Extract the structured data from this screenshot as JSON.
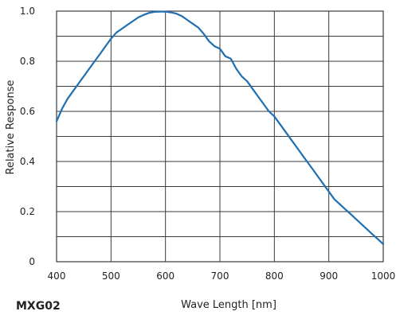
{
  "chart_data": {
    "type": "line",
    "title": "",
    "model_label": "MXG02",
    "xlabel": "Wave Length [nm]",
    "ylabel": "Relative Response",
    "xlim": [
      400,
      1000
    ],
    "ylim": [
      0,
      1.0
    ],
    "x_ticks": [
      400,
      500,
      600,
      700,
      800,
      900,
      1000
    ],
    "y_ticks": [
      0,
      0.2,
      0.4,
      0.6,
      0.8,
      1.0
    ],
    "x_tick_labels": [
      "400",
      "500",
      "600",
      "700",
      "800",
      "900",
      "1000"
    ],
    "y_tick_labels": [
      "0",
      "0.2",
      "0.4",
      "0.6",
      "0.8",
      "1.0"
    ],
    "x_grid_step": 100,
    "y_grid_step": 0.1,
    "grid": true,
    "color": "#1f6fb2",
    "series": [
      {
        "x": [
          400,
          410,
          420,
          430,
          440,
          450,
          460,
          470,
          480,
          490,
          500,
          510,
          520,
          530,
          540,
          550,
          560,
          570,
          580,
          590,
          600,
          610,
          620,
          630,
          640,
          650,
          660,
          670,
          680,
          690,
          700,
          710,
          720,
          730,
          740,
          750,
          760,
          770,
          780,
          790,
          800,
          810,
          820,
          830,
          840,
          850,
          860,
          870,
          880,
          890,
          900,
          910,
          920,
          930,
          940,
          950,
          960,
          970,
          980,
          990,
          1000
        ],
        "y": [
          0.56,
          0.61,
          0.65,
          0.68,
          0.71,
          0.74,
          0.77,
          0.8,
          0.83,
          0.86,
          0.89,
          0.915,
          0.93,
          0.945,
          0.96,
          0.975,
          0.985,
          0.993,
          0.997,
          0.998,
          0.998,
          0.995,
          0.99,
          0.98,
          0.965,
          0.95,
          0.935,
          0.91,
          0.88,
          0.86,
          0.85,
          0.82,
          0.81,
          0.77,
          0.74,
          0.72,
          0.69,
          0.66,
          0.63,
          0.6,
          0.58,
          0.55,
          0.52,
          0.49,
          0.46,
          0.43,
          0.4,
          0.37,
          0.34,
          0.31,
          0.28,
          0.25,
          0.23,
          0.21,
          0.19,
          0.17,
          0.15,
          0.13,
          0.11,
          0.09,
          0.07
        ]
      }
    ]
  }
}
